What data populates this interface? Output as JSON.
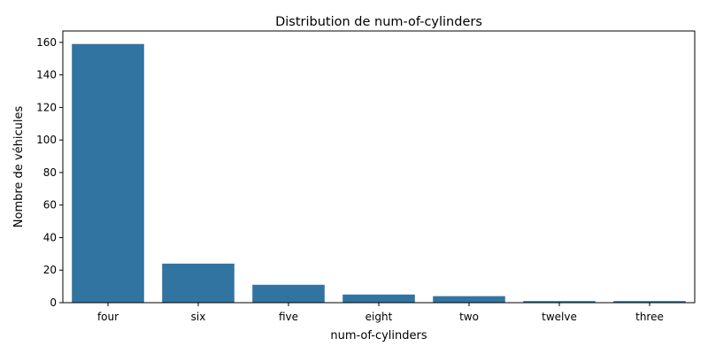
{
  "chart_data": {
    "type": "bar",
    "title": "Distribution de num-of-cylinders",
    "xlabel": "num-of-cylinders",
    "ylabel": "Nombre de véhicules",
    "categories": [
      "four",
      "six",
      "five",
      "eight",
      "two",
      "twelve",
      "three"
    ],
    "values": [
      159,
      24,
      11,
      5,
      4,
      1,
      1
    ],
    "ylim": [
      0,
      167
    ],
    "yticks": [
      0,
      20,
      40,
      60,
      80,
      100,
      120,
      140,
      160
    ],
    "grid": false,
    "legend": "none",
    "bar_color": "#3274a1"
  }
}
